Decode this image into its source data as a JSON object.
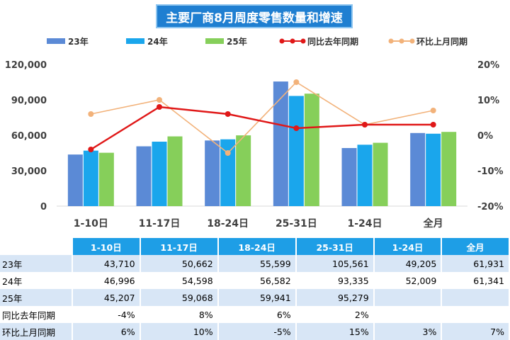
{
  "title": "主要厂商8月周度零售数量和增速",
  "colors": {
    "y23": "#5b8ad6",
    "y24": "#1aa6ec",
    "y25": "#86cf5a",
    "yoy": "#e01818",
    "mom": "#f2b27a",
    "title_bg": "#1f7fd1",
    "table_header": "#1e9ee6",
    "table_band": "#d8e6f6"
  },
  "chart_data": {
    "type": "bar",
    "title": "主要厂商8月周度零售数量和增速",
    "categories": [
      "1-10日",
      "11-17日",
      "18-24日",
      "25-31日",
      "1-24日",
      "全月"
    ],
    "series": [
      {
        "name": "23年",
        "kind": "bar",
        "axis": "left",
        "values": [
          43710,
          50662,
          55599,
          105561,
          49205,
          61931
        ]
      },
      {
        "name": "24年",
        "kind": "bar",
        "axis": "left",
        "values": [
          46996,
          54598,
          56582,
          93335,
          52009,
          61341
        ]
      },
      {
        "name": "25年",
        "kind": "bar",
        "axis": "left",
        "values": [
          45207,
          59068,
          59941,
          95279,
          53647,
          62871
        ]
      },
      {
        "name": "同比去年同期",
        "kind": "line",
        "axis": "right",
        "values": [
          -4,
          8,
          6,
          2,
          3,
          3
        ]
      },
      {
        "name": "环比上月同期",
        "kind": "line",
        "axis": "right",
        "values": [
          6,
          10,
          -5,
          15,
          3,
          7
        ]
      }
    ],
    "left_axis": {
      "min": 0,
      "max": 120000,
      "ticks": [
        0,
        30000,
        60000,
        90000,
        120000
      ],
      "tick_labels": [
        "0",
        "30,000",
        "60,000",
        "90,000",
        "120,000"
      ]
    },
    "right_axis": {
      "min": -20,
      "max": 20,
      "ticks": [
        -20,
        -10,
        0,
        10,
        20
      ],
      "tick_labels": [
        "-20%",
        "-10%",
        "0%",
        "10%",
        "20%"
      ]
    },
    "grid": false,
    "legend": "top"
  },
  "table": {
    "header": [
      "1-10日",
      "11-17日",
      "18-24日",
      "25-31日",
      "1-24日",
      "全月"
    ],
    "rows": [
      {
        "label": "23年",
        "cells": [
          "43,710",
          "50,662",
          "55,599",
          "105,561",
          "49,205",
          "61,931"
        ]
      },
      {
        "label": "24年",
        "cells": [
          "46,996",
          "54,598",
          "56,582",
          "93,335",
          "52,009",
          "61,341"
        ]
      },
      {
        "label": "25年",
        "cells": [
          "45,207",
          "59,068",
          "59,941",
          "95,279",
          "",
          ""
        ]
      },
      {
        "label": "同比去年同期",
        "cells": [
          "-4%",
          "8%",
          "6%",
          "2%",
          "",
          ""
        ]
      },
      {
        "label": "环比上月同期",
        "cells": [
          "6%",
          "10%",
          "-5%",
          "15%",
          "3%",
          "7%"
        ]
      }
    ]
  }
}
